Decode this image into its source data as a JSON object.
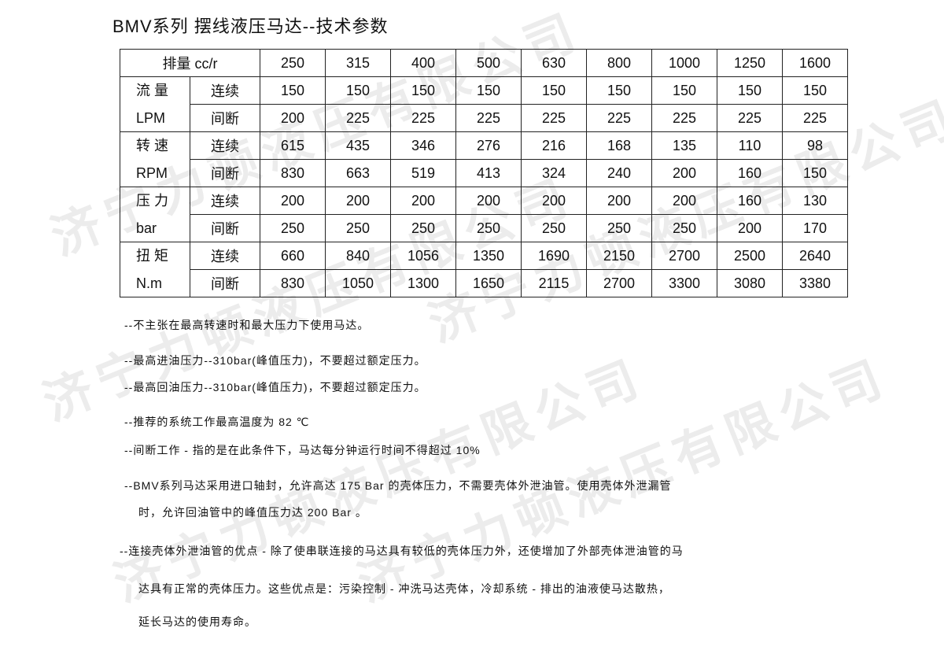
{
  "watermark_text": "济宁力顿液压有限公司",
  "title": "BMV系列 摆线液压马达--技术参数",
  "table": {
    "header_label": "排量 cc/r",
    "displacements": [
      "250",
      "315",
      "400",
      "500",
      "630",
      "800",
      "1000",
      "1250",
      "1600"
    ],
    "groups": [
      {
        "name": "流 量",
        "unit": "LPM",
        "rows": [
          {
            "label": "连续",
            "values": [
              "150",
              "150",
              "150",
              "150",
              "150",
              "150",
              "150",
              "150",
              "150"
            ]
          },
          {
            "label": "间断",
            "values": [
              "200",
              "225",
              "225",
              "225",
              "225",
              "225",
              "225",
              "225",
              "225"
            ]
          }
        ]
      },
      {
        "name": "转 速",
        "unit": "RPM",
        "rows": [
          {
            "label": "连续",
            "values": [
              "615",
              "435",
              "346",
              "276",
              "216",
              "168",
              "135",
              "110",
              "98"
            ]
          },
          {
            "label": "间断",
            "values": [
              "830",
              "663",
              "519",
              "413",
              "324",
              "240",
              "200",
              "160",
              "150"
            ]
          }
        ]
      },
      {
        "name": "压 力",
        "unit": "bar",
        "rows": [
          {
            "label": "连续",
            "values": [
              "200",
              "200",
              "200",
              "200",
              "200",
              "200",
              "200",
              "160",
              "130"
            ]
          },
          {
            "label": "间断",
            "values": [
              "250",
              "250",
              "250",
              "250",
              "250",
              "250",
              "250",
              "200",
              "170"
            ]
          }
        ]
      },
      {
        "name": "扭 矩",
        "unit": "N.m",
        "rows": [
          {
            "label": "连续",
            "values": [
              "660",
              "840",
              "1056",
              "1350",
              "1690",
              "2150",
              "2700",
              "2500",
              "2640"
            ]
          },
          {
            "label": "间断",
            "values": [
              "830",
              "1050",
              "1300",
              "1650",
              "2115",
              "2700",
              "3300",
              "3080",
              "3380"
            ]
          }
        ]
      }
    ]
  },
  "notes": [
    "--不主张在最高转速时和最大压力下使用马达。",
    "--最高进油压力--310bar(峰值压力)，不要超过额定压力。",
    "--最高回油压力--310bar(峰值压力)，不要超过额定压力。",
    "--推荐的系统工作最高温度为 82 ℃",
    "--间断工作 - 指的是在此条件下，马达每分钟运行时间不得超过 10%",
    "--BMV系列马达采用进口轴封，允许高达 175 Bar 的壳体压力，不需要壳体外泄油管。使用壳体外泄漏管",
    "时，允许回油管中的峰值压力达 200 Bar 。",
    "--连接壳体外泄油管的优点 - 除了使串联连接的马达具有较低的壳体压力外，还使增加了外部壳体泄油管的马",
    "达具有正常的壳体压力。这些优点是：污染控制 - 冲洗马达壳体，冷却系统 - 排出的油液使马达散热，",
    "延长马达的使用寿命。"
  ]
}
